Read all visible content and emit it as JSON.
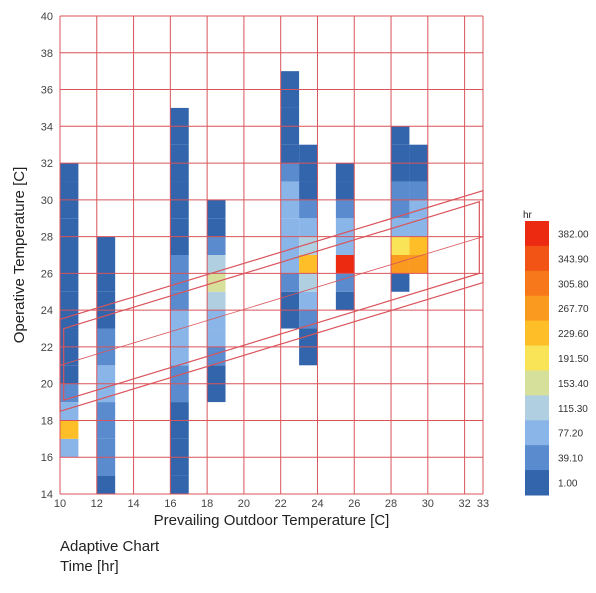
{
  "caption": {
    "line1": "Adaptive Chart",
    "line2": "Time [hr]"
  },
  "chart_data": {
    "type": "heatmap",
    "title": "",
    "xlabel": "Prevailing Outdoor Temperature [C]",
    "ylabel": "Operative Temperature [C]",
    "xlim": [
      10,
      33
    ],
    "ylim": [
      14,
      40
    ],
    "x_ticks": [
      10,
      12,
      14,
      16,
      18,
      20,
      22,
      24,
      26,
      28,
      30,
      32,
      33
    ],
    "y_ticks": [
      14,
      16,
      18,
      20,
      22,
      24,
      26,
      28,
      30,
      32,
      34,
      36,
      38,
      40
    ],
    "grid": true,
    "grid_color": "#d9545a",
    "cell_height": 1,
    "colorbar": {
      "unit": "hr",
      "ticks": [
        "382.00",
        "343.90",
        "305.80",
        "267.70",
        "229.60",
        "191.50",
        "153.40",
        "115.30",
        "77.20",
        "39.10",
        "1.00"
      ],
      "colors": [
        "#ec2a12",
        "#f25415",
        "#f6781a",
        "#fa9a1f",
        "#fdbe28",
        "#f9e457",
        "#d6e09a",
        "#b0d0e2",
        "#8ab5e8",
        "#5a8bce",
        "#3265ac"
      ]
    },
    "comfort_band": {
      "outer_upper": [
        [
          10,
          23.5
        ],
        [
          33,
          30.5
        ]
      ],
      "outer_lower": [
        [
          10,
          18.5
        ],
        [
          33,
          25.5
        ]
      ],
      "inner_upper": [
        [
          10.2,
          23.0
        ],
        [
          32.8,
          29.9
        ]
      ],
      "inner_lower": [
        [
          10.2,
          19.1
        ],
        [
          32.8,
          26.0
        ]
      ],
      "neutral_line": [
        [
          10,
          21
        ],
        [
          33,
          28
        ]
      ]
    },
    "columns": [
      {
        "x0": 10,
        "x1": 11,
        "cells": [
          {
            "y": 16,
            "v": 80
          },
          {
            "y": 17,
            "v": 250
          },
          {
            "y": 18,
            "v": 90
          },
          {
            "y": 19,
            "v": 40
          },
          {
            "y": 20,
            "v": 30
          },
          {
            "y": 21,
            "v": 25
          },
          {
            "y": 22,
            "v": 20
          },
          {
            "y": 23,
            "v": 15
          },
          {
            "y": 24,
            "v": 10
          },
          {
            "y": 25,
            "v": 8
          },
          {
            "y": 26,
            "v": 6
          },
          {
            "y": 27,
            "v": 5
          },
          {
            "y": 28,
            "v": 4
          },
          {
            "y": 29,
            "v": 3
          },
          {
            "y": 30,
            "v": 2
          },
          {
            "y": 31,
            "v": 1
          }
        ]
      },
      {
        "x0": 12,
        "x1": 13,
        "cells": [
          {
            "y": 14,
            "v": 35
          },
          {
            "y": 15,
            "v": 45
          },
          {
            "y": 16,
            "v": 55
          },
          {
            "y": 17,
            "v": 65
          },
          {
            "y": 18,
            "v": 75
          },
          {
            "y": 19,
            "v": 90
          },
          {
            "y": 20,
            "v": 80
          },
          {
            "y": 21,
            "v": 60
          },
          {
            "y": 22,
            "v": 45
          },
          {
            "y": 23,
            "v": 35
          },
          {
            "y": 24,
            "v": 25
          },
          {
            "y": 25,
            "v": 15
          },
          {
            "y": 26,
            "v": 8
          },
          {
            "y": 27,
            "v": 2
          }
        ]
      },
      {
        "x0": 16,
        "x1": 17,
        "cells": [
          {
            "y": 14,
            "v": 3
          },
          {
            "y": 15,
            "v": 5
          },
          {
            "y": 16,
            "v": 10
          },
          {
            "y": 17,
            "v": 20
          },
          {
            "y": 18,
            "v": 35
          },
          {
            "y": 19,
            "v": 50
          },
          {
            "y": 20,
            "v": 65
          },
          {
            "y": 21,
            "v": 85
          },
          {
            "y": 22,
            "v": 105
          },
          {
            "y": 23,
            "v": 95
          },
          {
            "y": 24,
            "v": 75
          },
          {
            "y": 25,
            "v": 55
          },
          {
            "y": 26,
            "v": 40
          },
          {
            "y": 27,
            "v": 28
          },
          {
            "y": 28,
            "v": 20
          },
          {
            "y": 29,
            "v": 14
          },
          {
            "y": 30,
            "v": 10
          },
          {
            "y": 31,
            "v": 6
          },
          {
            "y": 32,
            "v": 4
          },
          {
            "y": 33,
            "v": 2
          },
          {
            "y": 34,
            "v": 1
          }
        ]
      },
      {
        "x0": 18,
        "x1": 19,
        "cells": [
          {
            "y": 19,
            "v": 8
          },
          {
            "y": 20,
            "v": 20
          },
          {
            "y": 21,
            "v": 60
          },
          {
            "y": 22,
            "v": 95
          },
          {
            "y": 23,
            "v": 110
          },
          {
            "y": 24,
            "v": 125
          },
          {
            "y": 25,
            "v": 160
          },
          {
            "y": 26,
            "v": 118
          },
          {
            "y": 27,
            "v": 40
          },
          {
            "y": 28,
            "v": 15
          },
          {
            "y": 29,
            "v": 6
          }
        ]
      },
      {
        "x0": 22,
        "x1": 23,
        "cells": [
          {
            "y": 23,
            "v": 6
          },
          {
            "y": 24,
            "v": 30
          },
          {
            "y": 25,
            "v": 55
          },
          {
            "y": 26,
            "v": 85
          },
          {
            "y": 27,
            "v": 105
          },
          {
            "y": 28,
            "v": 115
          },
          {
            "y": 29,
            "v": 100
          },
          {
            "y": 30,
            "v": 78
          },
          {
            "y": 31,
            "v": 50
          },
          {
            "y": 32,
            "v": 32
          },
          {
            "y": 33,
            "v": 18
          },
          {
            "y": 34,
            "v": 10
          },
          {
            "y": 35,
            "v": 5
          },
          {
            "y": 36,
            "v": 2
          }
        ]
      },
      {
        "x0": 23,
        "x1": 24,
        "cells": [
          {
            "y": 21,
            "v": 5
          },
          {
            "y": 22,
            "v": 15
          },
          {
            "y": 23,
            "v": 40
          },
          {
            "y": 24,
            "v": 90
          },
          {
            "y": 25,
            "v": 130
          },
          {
            "y": 26,
            "v": 250
          },
          {
            "y": 27,
            "v": 120
          },
          {
            "y": 28,
            "v": 80
          },
          {
            "y": 29,
            "v": 55
          },
          {
            "y": 30,
            "v": 35
          },
          {
            "y": 31,
            "v": 20
          },
          {
            "y": 32,
            "v": 6
          }
        ]
      },
      {
        "x0": 25,
        "x1": 26,
        "cells": [
          {
            "y": 24,
            "v": 10
          },
          {
            "y": 25,
            "v": 60
          },
          {
            "y": 26,
            "v": 382
          },
          {
            "y": 27,
            "v": 110
          },
          {
            "y": 28,
            "v": 85
          },
          {
            "y": 29,
            "v": 55
          },
          {
            "y": 30,
            "v": 30
          },
          {
            "y": 31,
            "v": 4
          }
        ]
      },
      {
        "x0": 28,
        "x1": 29,
        "cells": [
          {
            "y": 25,
            "v": 12
          },
          {
            "y": 26,
            "v": 290
          },
          {
            "y": 27,
            "v": 200
          },
          {
            "y": 28,
            "v": 90
          },
          {
            "y": 29,
            "v": 60
          },
          {
            "y": 30,
            "v": 40
          },
          {
            "y": 31,
            "v": 25
          },
          {
            "y": 32,
            "v": 15
          },
          {
            "y": 33,
            "v": 5
          }
        ]
      },
      {
        "x0": 29,
        "x1": 30,
        "cells": [
          {
            "y": 26,
            "v": 270
          },
          {
            "y": 27,
            "v": 230
          },
          {
            "y": 28,
            "v": 100
          },
          {
            "y": 29,
            "v": 80
          },
          {
            "y": 30,
            "v": 55
          },
          {
            "y": 31,
            "v": 35
          },
          {
            "y": 32,
            "v": 20
          }
        ]
      }
    ]
  }
}
